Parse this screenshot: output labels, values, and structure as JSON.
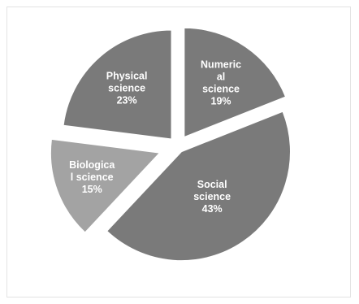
{
  "chart_data": {
    "type": "pie",
    "style": "exploded",
    "slices": [
      {
        "label_lines": [
          "Numeric",
          "al",
          "science",
          "19%"
        ],
        "label": "Numerical science",
        "value": 19,
        "color": "#7a7a7a"
      },
      {
        "label_lines": [
          "Social",
          "science",
          "43%"
        ],
        "label": "Social science",
        "value": 43,
        "color": "#7a7a7a"
      },
      {
        "label_lines": [
          "Biologica",
          "l science",
          "15%"
        ],
        "label": "Biological science",
        "value": 15,
        "color": "#a3a3a3"
      },
      {
        "label_lines": [
          "Physical",
          "science",
          "23%"
        ],
        "label": "Physical science",
        "value": 23,
        "color": "#7a7a7a"
      }
    ],
    "legend": "none",
    "title": ""
  }
}
